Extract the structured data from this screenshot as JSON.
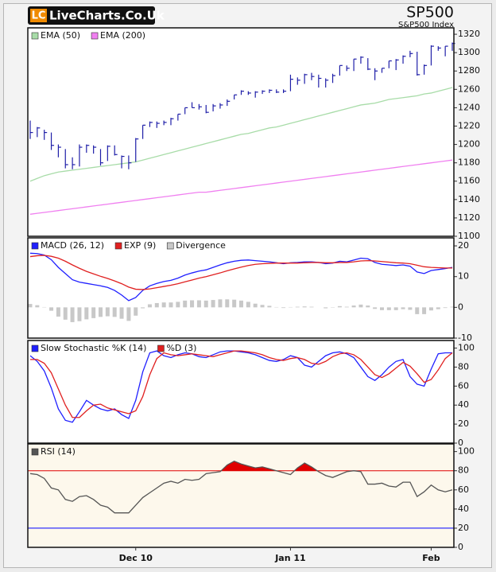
{
  "header": {
    "logo_mark": "LC",
    "logo_text": "LiveCharts.Co.Uk",
    "title": "SP500",
    "subtitle": "S&P500 Index"
  },
  "chart_data": [
    {
      "type": "ohlc",
      "color": "#1f1fa8",
      "background": "#ffffff",
      "high": [
        1226,
        1219,
        1216,
        1213,
        1200,
        1195,
        1186,
        1200,
        1200,
        1199,
        1195,
        1199,
        1199,
        1188,
        1188,
        1207,
        1221,
        1225,
        1225,
        1226,
        1229,
        1233,
        1240,
        1246,
        1244,
        1243,
        1244,
        1245,
        1249,
        1254,
        1259,
        1258,
        1258,
        1259,
        1260,
        1260,
        1260,
        1276,
        1273,
        1277,
        1278,
        1276,
        1272,
        1277,
        1286,
        1286,
        1293,
        1296,
        1294,
        1283,
        1283,
        1291,
        1293,
        1297,
        1302,
        1301,
        1287,
        1308,
        1307,
        1307,
        1311
      ],
      "low": [
        1206,
        1208,
        1205,
        1194,
        1186,
        1174,
        1173,
        1176,
        1191,
        1190,
        1177,
        1182,
        1188,
        1174,
        1173,
        1181,
        1206,
        1219,
        1218,
        1221,
        1221,
        1226,
        1233,
        1240,
        1238,
        1234,
        1236,
        1239,
        1242,
        1249,
        1254,
        1254,
        1251,
        1255,
        1256,
        1256,
        1256,
        1258,
        1265,
        1266,
        1270,
        1262,
        1262,
        1267,
        1275,
        1280,
        1280,
        1288,
        1281,
        1270,
        1278,
        1283,
        1281,
        1288,
        1295,
        1275,
        1276,
        1286,
        1302,
        1296,
        1302
      ],
      "close": [
        1213,
        1218,
        1213,
        1199,
        1197,
        1178,
        1178,
        1197,
        1199,
        1197,
        1180,
        1198,
        1189,
        1187,
        1180,
        1206,
        1221,
        1224,
        1223,
        1224,
        1228,
        1233,
        1240,
        1240,
        1241,
        1235,
        1242,
        1243,
        1247,
        1254,
        1258,
        1256,
        1257,
        1258,
        1259,
        1257,
        1258,
        1271,
        1270,
        1276,
        1274,
        1272,
        1270,
        1275,
        1286,
        1283,
        1293,
        1295,
        1282,
        1280,
        1283,
        1291,
        1292,
        1296,
        1299,
        1276,
        1286,
        1307,
        1305,
        1307,
        1310
      ],
      "series": [
        {
          "name": "EMA (50)",
          "color": "#a8dca8",
          "values": [
            1160,
            1163,
            1166,
            1168,
            1170,
            1171,
            1172,
            1173,
            1174,
            1175,
            1176,
            1177,
            1178,
            1179,
            1180,
            1181,
            1183,
            1185,
            1187,
            1189,
            1191,
            1193,
            1195,
            1197,
            1199,
            1201,
            1203,
            1205,
            1207,
            1209,
            1211,
            1212,
            1214,
            1216,
            1218,
            1219,
            1221,
            1223,
            1225,
            1227,
            1229,
            1231,
            1233,
            1235,
            1237,
            1239,
            1241,
            1243,
            1244,
            1245,
            1247,
            1249,
            1250,
            1251,
            1252,
            1253,
            1255,
            1256,
            1258,
            1260,
            1262
          ]
        },
        {
          "name": "EMA (200)",
          "color": "#f080f0",
          "values": [
            1124,
            1125,
            1126,
            1127,
            1128,
            1129,
            1130,
            1131,
            1132,
            1133,
            1134,
            1135,
            1136,
            1137,
            1138,
            1139,
            1140,
            1141,
            1142,
            1143,
            1144,
            1145,
            1146,
            1147,
            1148,
            1148,
            1149,
            1150,
            1151,
            1152,
            1153,
            1154,
            1155,
            1156,
            1157,
            1158,
            1159,
            1160,
            1161,
            1162,
            1163,
            1164,
            1165,
            1166,
            1167,
            1168,
            1169,
            1170,
            1171,
            1172,
            1173,
            1174,
            1175,
            1176,
            1177,
            1178,
            1179,
            1180,
            1181,
            1182,
            1183
          ]
        }
      ],
      "ylim": [
        1100,
        1327
      ],
      "yticks": [
        1100,
        1120,
        1140,
        1160,
        1180,
        1200,
        1220,
        1240,
        1260,
        1280,
        1300,
        1320
      ]
    },
    {
      "type": "line",
      "background": "#ffffff",
      "series": [
        {
          "name": "MACD (26, 12)",
          "color": "#2020ff",
          "values": [
            17.6,
            17.5,
            17,
            15.5,
            13,
            11,
            9,
            8.2,
            7.8,
            7.4,
            7,
            6.5,
            5.5,
            4,
            2.2,
            3.2,
            5.5,
            7,
            7.8,
            8.4,
            8.8,
            9.5,
            10.5,
            11.2,
            11.8,
            12.2,
            13,
            13.8,
            14.5,
            15,
            15.3,
            15.4,
            15.2,
            15,
            14.8,
            14.5,
            14.2,
            14.5,
            14.6,
            14.8,
            14.8,
            14.6,
            14.2,
            14.4,
            15,
            14.8,
            15.4,
            16,
            15.8,
            14.6,
            14,
            13.8,
            13.6,
            13.8,
            13.4,
            11.5,
            11,
            12,
            12.3,
            12.6,
            13
          ]
        },
        {
          "name": "EXP (9)",
          "color": "#e02020",
          "values": [
            16.5,
            16.8,
            16.9,
            16.6,
            16,
            15,
            13.8,
            12.7,
            11.7,
            10.9,
            10.1,
            9.4,
            8.6,
            7.7,
            6.6,
            5.9,
            5.8,
            6,
            6.4,
            6.8,
            7.2,
            7.7,
            8.3,
            8.9,
            9.5,
            10,
            10.6,
            11.2,
            11.9,
            12.5,
            13.1,
            13.6,
            14,
            14.2,
            14.3,
            14.4,
            14.4,
            14.4,
            14.4,
            14.5,
            14.6,
            14.6,
            14.5,
            14.5,
            14.6,
            14.6,
            14.8,
            15.1,
            15.2,
            15.1,
            14.9,
            14.7,
            14.5,
            14.4,
            14.2,
            13.7,
            13.2,
            13,
            12.9,
            12.8,
            12.8
          ]
        },
        {
          "name": "Divergence",
          "color": "#c8c8c8",
          "style": "histogram",
          "values": [
            1.1,
            0.7,
            0.1,
            -1.1,
            -3,
            -4,
            -4.8,
            -4.5,
            -3.9,
            -3.5,
            -3.1,
            -2.9,
            -3.1,
            -3.7,
            -4.4,
            -2.7,
            -0.3,
            1,
            1.4,
            1.6,
            1.6,
            1.8,
            2.2,
            2.3,
            2.3,
            2.2,
            2.4,
            2.6,
            2.6,
            2.5,
            2.2,
            1.8,
            1.2,
            0.8,
            0.5,
            0.1,
            -0.2,
            0.1,
            0.2,
            0.3,
            0.2,
            0,
            -0.3,
            -0.1,
            0.4,
            0.2,
            0.6,
            0.9,
            0.6,
            -0.5,
            -0.9,
            -0.9,
            -0.9,
            -0.6,
            -0.8,
            -2.2,
            -2.2,
            -1,
            -0.6,
            -0.2,
            0.2
          ]
        }
      ],
      "ylim": [
        -10,
        22.6
      ],
      "yticks": [
        20,
        10,
        0,
        -10
      ]
    },
    {
      "type": "line",
      "background": "#ffffff",
      "series": [
        {
          "name": "Slow Stochastic %K (14)",
          "color": "#2020ff",
          "values": [
            92,
            86,
            76,
            58,
            36,
            24,
            22,
            33,
            45,
            40,
            36,
            34,
            36,
            30,
            26,
            45,
            75,
            95,
            97,
            92,
            90,
            93,
            95,
            94,
            91,
            90,
            93,
            96,
            97,
            97,
            96,
            95,
            93,
            90,
            87,
            86,
            88,
            92,
            90,
            82,
            80,
            86,
            92,
            95,
            96,
            94,
            90,
            80,
            70,
            66,
            72,
            80,
            86,
            88,
            70,
            62,
            60,
            78,
            94,
            95,
            95
          ]
        },
        {
          "name": "%D (3)",
          "color": "#e02020",
          "values": [
            88,
            88,
            84,
            74,
            57,
            40,
            27,
            27,
            34,
            40,
            41,
            37,
            35,
            33,
            31,
            34,
            49,
            72,
            89,
            95,
            93,
            92,
            93,
            94,
            93,
            92,
            91,
            93,
            95,
            97,
            97,
            96,
            95,
            93,
            90,
            88,
            87,
            89,
            90,
            88,
            84,
            83,
            86,
            91,
            94,
            95,
            93,
            88,
            80,
            72,
            69,
            73,
            79,
            85,
            81,
            73,
            64,
            67,
            77,
            89,
            95
          ]
        }
      ],
      "ylim": [
        0,
        108
      ],
      "yticks": [
        0,
        20,
        40,
        60,
        80,
        100
      ]
    },
    {
      "type": "line",
      "background": "#fdf8ec",
      "categories": [
        null,
        null,
        null,
        null,
        null,
        null,
        null,
        null,
        null,
        null,
        null,
        null,
        null,
        null,
        null,
        "Dec 10",
        null,
        null,
        null,
        null,
        null,
        null,
        null,
        null,
        null,
        null,
        null,
        null,
        null,
        null,
        null,
        null,
        null,
        null,
        null,
        null,
        null,
        "Jan 11",
        null,
        null,
        null,
        null,
        null,
        null,
        null,
        null,
        null,
        null,
        null,
        null,
        null,
        null,
        null,
        null,
        null,
        null,
        null,
        "Feb",
        null,
        null,
        null
      ],
      "series": [
        {
          "name": "RSI (14)",
          "color": "#555555",
          "values": [
            77,
            76,
            72,
            62,
            60,
            50,
            48,
            53,
            54,
            50,
            44,
            42,
            36,
            36,
            36,
            44,
            52,
            57,
            62,
            67,
            69,
            67,
            71,
            70,
            71,
            77,
            78,
            79,
            86,
            90,
            87,
            85,
            83,
            84,
            82,
            80,
            78,
            76,
            83,
            88,
            84,
            79,
            75,
            73,
            76,
            79,
            80,
            79,
            66,
            66,
            67,
            64,
            63,
            68,
            68,
            53,
            58,
            65,
            60,
            58,
            60
          ]
        }
      ],
      "levels": [
        {
          "value": 80,
          "color": "#e00000",
          "fill": true
        },
        {
          "value": 20,
          "color": "#0000ff",
          "fill": false
        }
      ],
      "ylim": [
        0,
        108
      ],
      "yticks": [
        0,
        20,
        40,
        60,
        80,
        100
      ]
    }
  ]
}
